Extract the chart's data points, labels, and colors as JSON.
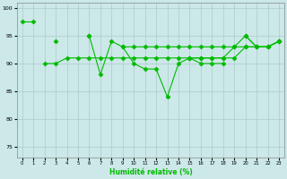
{
  "x": [
    0,
    1,
    2,
    3,
    4,
    5,
    6,
    7,
    8,
    9,
    10,
    11,
    12,
    13,
    14,
    15,
    16,
    17,
    18,
    19,
    20,
    21,
    22,
    23
  ],
  "series": [
    [
      97.5,
      97.5,
      null,
      94,
      null,
      null,
      95,
      88,
      94,
      93,
      90,
      89,
      89,
      84,
      90,
      91,
      90,
      90,
      90,
      null,
      95,
      93,
      93,
      94
    ],
    [
      null,
      null,
      90,
      90,
      91,
      91,
      91,
      91,
      91,
      91,
      91,
      91,
      91,
      91,
      91,
      91,
      91,
      91,
      91,
      91,
      93,
      93,
      93,
      94
    ],
    [
      null,
      null,
      null,
      null,
      null,
      null,
      95,
      null,
      null,
      93,
      93,
      93,
      93,
      93,
      93,
      93,
      93,
      93,
      93,
      93,
      95,
      93,
      93,
      94
    ],
    [
      null,
      null,
      null,
      null,
      null,
      null,
      null,
      null,
      null,
      null,
      null,
      null,
      null,
      null,
      null,
      91,
      91,
      91,
      91,
      93,
      93,
      93,
      93,
      94
    ]
  ],
  "background_color": "#cce8e8",
  "grid_color": "#aacccc",
  "line_color": "#00bb00",
  "marker_color": "#00bb00",
  "xlabel": "Humidité relative (%)",
  "ylim": [
    73,
    101
  ],
  "xlim": [
    -0.5,
    23.5
  ],
  "yticks": [
    75,
    80,
    85,
    90,
    95,
    100
  ],
  "xticks": [
    0,
    1,
    2,
    3,
    4,
    5,
    6,
    7,
    8,
    9,
    10,
    11,
    12,
    13,
    14,
    15,
    16,
    17,
    18,
    19,
    20,
    21,
    22,
    23
  ]
}
